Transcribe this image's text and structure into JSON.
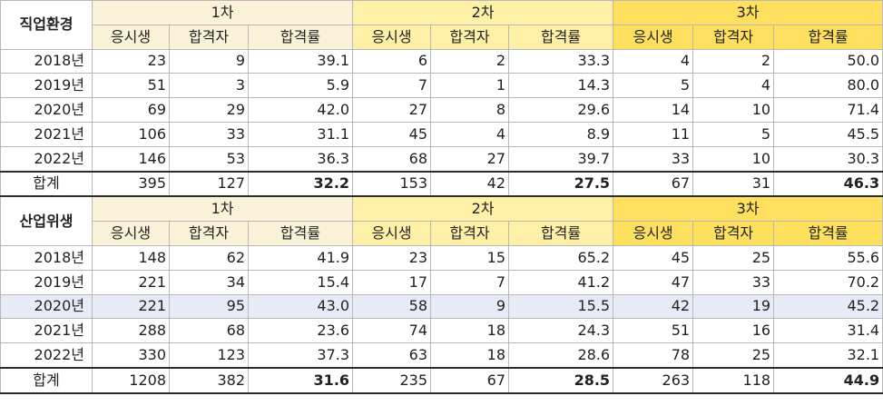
{
  "sections": [
    {
      "title": "직업환경",
      "rounds": [
        "1차",
        "2차",
        "3차"
      ],
      "cols": [
        "응시생",
        "합격자",
        "합격률"
      ],
      "rows": [
        {
          "year": "2018년",
          "v": [
            "23",
            "9",
            "39.1",
            "6",
            "2",
            "33.3",
            "4",
            "2",
            "50.0"
          ]
        },
        {
          "year": "2019년",
          "v": [
            "51",
            "3",
            "5.9",
            "7",
            "1",
            "14.3",
            "5",
            "4",
            "80.0"
          ]
        },
        {
          "year": "2020년",
          "v": [
            "69",
            "29",
            "42.0",
            "27",
            "8",
            "29.6",
            "14",
            "10",
            "71.4"
          ]
        },
        {
          "year": "2021년",
          "v": [
            "106",
            "33",
            "31.1",
            "45",
            "4",
            "8.9",
            "11",
            "5",
            "45.5"
          ]
        },
        {
          "year": "2022년",
          "v": [
            "146",
            "53",
            "36.3",
            "68",
            "27",
            "39.7",
            "33",
            "10",
            "30.3"
          ]
        }
      ],
      "total": {
        "label": "합계",
        "v": [
          "395",
          "127",
          "32.2",
          "153",
          "42",
          "27.5",
          "67",
          "31",
          "46.3"
        ]
      }
    },
    {
      "title": "산업위생",
      "rounds": [
        "1차",
        "2차",
        "3차"
      ],
      "cols": [
        "응시생",
        "합격자",
        "합격률"
      ],
      "rows": [
        {
          "year": "2018년",
          "v": [
            "148",
            "62",
            "41.9",
            "23",
            "15",
            "65.2",
            "45",
            "25",
            "55.6"
          ]
        },
        {
          "year": "2019년",
          "v": [
            "221",
            "34",
            "15.4",
            "17",
            "7",
            "41.2",
            "47",
            "33",
            "70.2"
          ]
        },
        {
          "year": "2020년",
          "v": [
            "221",
            "95",
            "43.0",
            "58",
            "9",
            "15.5",
            "42",
            "19",
            "45.2"
          ]
        },
        {
          "year": "2021년",
          "v": [
            "288",
            "68",
            "23.6",
            "74",
            "18",
            "24.3",
            "51",
            "16",
            "31.4"
          ]
        },
        {
          "year": "2022년",
          "v": [
            "330",
            "123",
            "37.3",
            "63",
            "18",
            "28.6",
            "78",
            "25",
            "32.1"
          ]
        }
      ],
      "total": {
        "label": "합계",
        "v": [
          "1208",
          "382",
          "31.6",
          "235",
          "67",
          "28.5",
          "263",
          "118",
          "44.9"
        ]
      }
    }
  ],
  "colors": {
    "round1": "#faf2d8",
    "round2": "#fff0a8",
    "round3": "#ffdf5e",
    "selected_row": "#e6ebf7"
  },
  "selected_row": {
    "section": 1,
    "row": 2
  }
}
